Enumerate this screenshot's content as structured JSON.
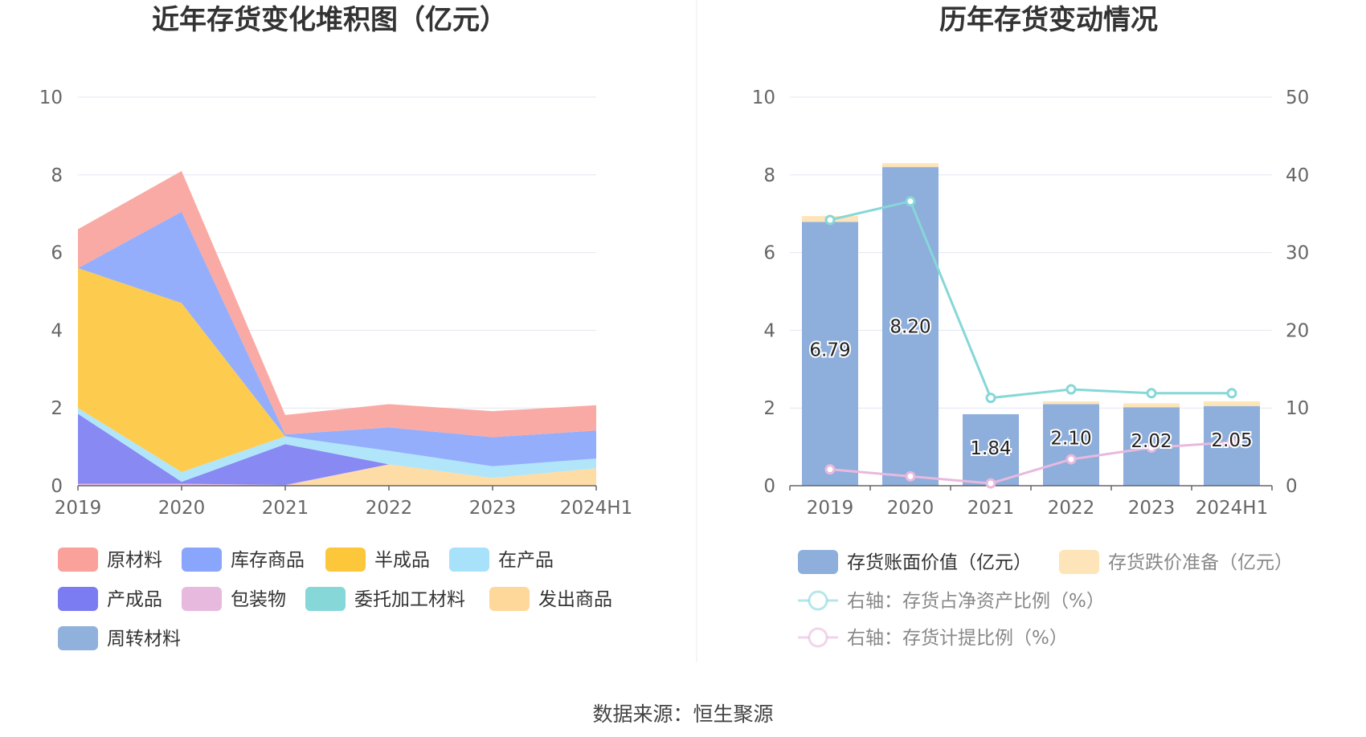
{
  "footer": {
    "source": "数据来源：恒生聚源"
  },
  "chart_data": [
    {
      "type": "area",
      "stacked": true,
      "title": "近年存货变化堆积图（亿元）",
      "categories": [
        "2019",
        "2020",
        "2021",
        "2022",
        "2023",
        "2024H1"
      ],
      "ylim": [
        0,
        10
      ],
      "yticks": [
        0,
        2,
        4,
        6,
        8,
        10
      ],
      "grid": true,
      "legend_position": "bottom",
      "series": [
        {
          "name": "原材料",
          "color": "#f9a19a",
          "values": [
            1.0,
            1.05,
            0.5,
            0.6,
            0.67,
            0.65
          ]
        },
        {
          "name": "库存商品",
          "color": "#8aa5fc",
          "values": [
            0.0,
            2.35,
            0.05,
            0.6,
            0.75,
            0.72
          ]
        },
        {
          "name": "半成品",
          "color": "#fdc73c",
          "values": [
            3.6,
            4.35,
            0.0,
            0.0,
            0.0,
            0.0
          ]
        },
        {
          "name": "在产品",
          "color": "#a8e2fa",
          "values": [
            0.15,
            0.25,
            0.2,
            0.35,
            0.3,
            0.25
          ]
        },
        {
          "name": "产成品",
          "color": "#7b7cf1",
          "values": [
            1.8,
            0.05,
            1.05,
            0.0,
            0.0,
            0.0
          ]
        },
        {
          "name": "包装物",
          "color": "#e8b9de",
          "values": [
            0.05,
            0.05,
            0.02,
            0.0,
            0.0,
            0.0
          ]
        },
        {
          "name": "委托加工材料",
          "color": "#86d7d8",
          "values": [
            0.0,
            0.0,
            0.0,
            0.0,
            0.0,
            0.0
          ]
        },
        {
          "name": "发出商品",
          "color": "#fed89b",
          "values": [
            0.0,
            0.0,
            0.0,
            0.55,
            0.2,
            0.45
          ]
        },
        {
          "name": "周转材料",
          "color": "#8fb1db",
          "values": [
            0.0,
            0.0,
            0.0,
            0.0,
            0.0,
            0.0
          ]
        }
      ]
    },
    {
      "type": "bar",
      "title": "历年存货变动情况",
      "categories": [
        "2019",
        "2020",
        "2021",
        "2022",
        "2023",
        "2024H1"
      ],
      "ylim": [
        0,
        10
      ],
      "yticks": [
        0,
        2,
        4,
        6,
        8,
        10
      ],
      "y2lim": [
        0,
        50
      ],
      "y2ticks": [
        0,
        10,
        20,
        30,
        40,
        50
      ],
      "grid": true,
      "legend_position": "bottom",
      "stacked_series": [
        {
          "name": "存货账面价值（亿元）",
          "color": "#8eaedc",
          "values": [
            6.79,
            8.2,
            1.84,
            2.1,
            2.02,
            2.05
          ],
          "labels": [
            "6.79",
            "8.20",
            "1.84",
            "2.10",
            "2.02",
            "2.05"
          ]
        },
        {
          "name": "存货跌价准备（亿元）",
          "color": "#fde4b9",
          "values": [
            0.15,
            0.1,
            0.0,
            0.07,
            0.1,
            0.12
          ]
        }
      ],
      "line_series": [
        {
          "name": "右轴：存货占净资产比例（%）",
          "color": "#86d7d8",
          "axis": "right",
          "values": [
            34.2,
            36.6,
            11.3,
            12.4,
            11.9,
            11.9
          ]
        },
        {
          "name": "右轴：存货计提比例（%）",
          "color": "#e8b9de",
          "axis": "right",
          "values": [
            2.1,
            1.2,
            0.3,
            3.4,
            4.9,
            5.6
          ]
        }
      ]
    }
  ]
}
